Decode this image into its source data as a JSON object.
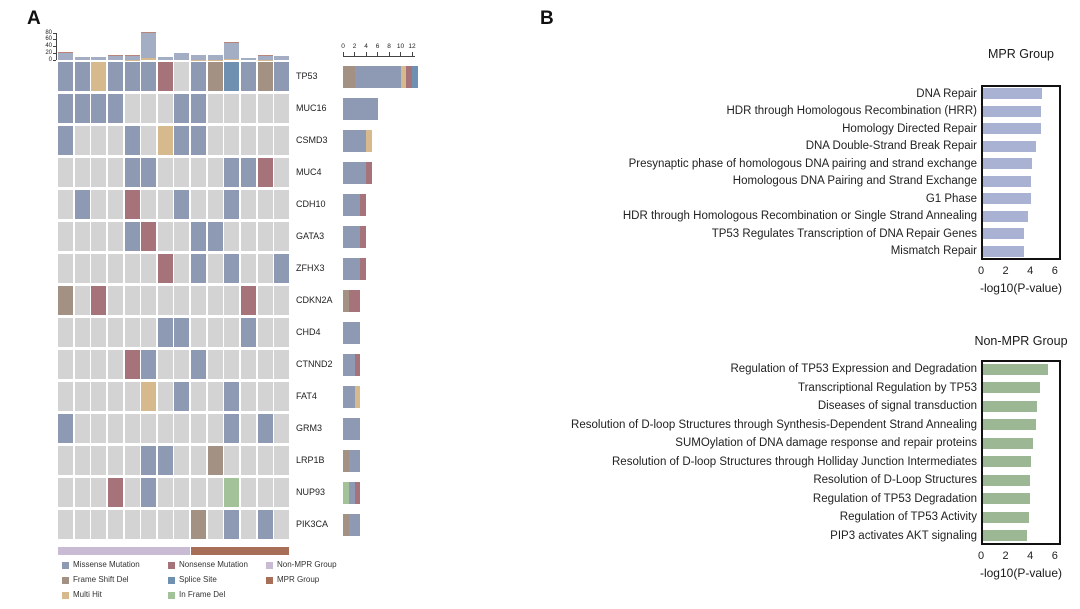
{
  "panelA": {
    "label": "A"
  },
  "panelB": {
    "label": "B"
  },
  "colors": {
    "missense": "#8e9ab4",
    "nonsense": "#a6737b",
    "frameshift": "#a39284",
    "splice": "#7090b2",
    "multihit": "#d6b98c",
    "inframe": "#a3c29a",
    "none": "#d3d3d3",
    "nonmpr_group": "#c8bbd3",
    "mpr_group": "#a76f58",
    "tmb_bar": "#a3aec4",
    "tmb_tip": "#b88579",
    "mpr_bars": "#a9b2d2",
    "nonmpr_bars": "#9cb793"
  },
  "legend": [
    {
      "label": "Missense Mutation",
      "key": "missense"
    },
    {
      "label": "Frame Shift Del",
      "key": "frameshift"
    },
    {
      "label": "Multi Hit",
      "key": "multihit"
    },
    {
      "label": "Nonsense Mutation",
      "key": "nonsense"
    },
    {
      "label": "Splice Site",
      "key": "splice"
    },
    {
      "label": "In Frame Del",
      "key": "inframe"
    },
    {
      "label": "Non-MPR Group",
      "key": "nonmpr_group"
    },
    {
      "label": "MPR Group",
      "key": "mpr_group"
    }
  ],
  "chart_data": [
    {
      "id": "oncoplot",
      "type": "oncoplot-heatmap",
      "n_samples": 14,
      "genes": [
        "TP53",
        "MUC16",
        "CSMD3",
        "MUC4",
        "CDH10",
        "GATA3",
        "ZFHX3",
        "CDKN2A",
        "CHD4",
        "CTNND2",
        "FAT4",
        "GRM3",
        "LRP1B",
        "NUP93",
        "PIK3CA"
      ],
      "matrix": [
        "mmhmmmn.mfsmfm",
        "mmmm...mm.....",
        "m...m.hmm.....",
        "....mm....mmn.",
        ".m..n..m..m...",
        "....mn..mm....",
        "......n.m.m..m",
        "f.n........n..",
        "......mm...m..",
        "....nm..m.....",
        ".....h.m..m...",
        "m.........m.m.",
        ".....mm..f....",
        "...n.m....i...",
        "........f.m.m."
      ],
      "code_map": {
        "m": "missense",
        "n": "nonsense",
        "f": "frameshift",
        "s": "splice",
        "h": "multihit",
        "i": "inframe",
        ".": "none"
      },
      "tmb_axis": {
        "ticks": [
          0,
          20,
          40,
          60,
          80
        ]
      },
      "tmb_bars": [
        [
          0,
          22,
          1
        ],
        [
          0,
          10,
          0
        ],
        [
          0,
          9,
          0
        ],
        [
          0,
          14,
          1
        ],
        [
          1,
          12,
          2
        ],
        [
          5,
          76,
          4
        ],
        [
          0,
          8,
          0
        ],
        [
          0,
          22,
          0
        ],
        [
          1,
          14,
          0
        ],
        [
          1,
          14,
          0
        ],
        [
          3,
          48,
          4
        ],
        [
          0,
          7,
          0
        ],
        [
          1,
          13,
          1
        ],
        [
          0,
          12,
          0
        ]
      ],
      "gene_axis": {
        "ticks": [
          0,
          2,
          4,
          6,
          8,
          10,
          12
        ],
        "max": 12.5
      },
      "gene_bars": [
        [
          [
            "frameshift",
            2
          ],
          [
            "missense",
            8
          ],
          [
            "multihit",
            1
          ],
          [
            "nonsense",
            1
          ],
          [
            "splice",
            1
          ]
        ],
        [
          [
            "missense",
            6
          ]
        ],
        [
          [
            "missense",
            4
          ],
          [
            "multihit",
            1
          ]
        ],
        [
          [
            "missense",
            4
          ],
          [
            "nonsense",
            1
          ]
        ],
        [
          [
            "missense",
            3
          ],
          [
            "nonsense",
            1
          ]
        ],
        [
          [
            "missense",
            3
          ],
          [
            "nonsense",
            1
          ]
        ],
        [
          [
            "missense",
            3
          ],
          [
            "nonsense",
            1
          ]
        ],
        [
          [
            "frameshift",
            1
          ],
          [
            "nonsense",
            2
          ]
        ],
        [
          [
            "missense",
            3
          ]
        ],
        [
          [
            "missense",
            2
          ],
          [
            "nonsense",
            1
          ]
        ],
        [
          [
            "missense",
            2
          ],
          [
            "multihit",
            1
          ]
        ],
        [
          [
            "missense",
            3
          ]
        ],
        [
          [
            "frameshift",
            1
          ],
          [
            "missense",
            2
          ]
        ],
        [
          [
            "inframe",
            1
          ],
          [
            "missense",
            1
          ],
          [
            "nonsense",
            1
          ]
        ],
        [
          [
            "frameshift",
            1
          ],
          [
            "missense",
            2
          ]
        ]
      ],
      "group_annotation": {
        "nonmpr_samples": 8,
        "mpr_samples": 6
      }
    },
    {
      "id": "mpr",
      "type": "bar",
      "orientation": "horizontal",
      "title": "MPR Group",
      "categories": [
        "DNA Repair",
        "HDR through Homologous Recombination (HRR)",
        "Homology Directed Repair",
        "DNA Double-Strand Break Repair",
        "Presynaptic phase of homologous DNA pairing and strand exchange",
        "Homologous DNA Pairing and Strand Exchange",
        "G1 Phase",
        "HDR through Homologous Recombination or Single Strand Annealing",
        "TP53 Regulates Transcription of DNA Repair Genes",
        "Mismatch Repair"
      ],
      "values": [
        4.8,
        4.7,
        4.75,
        4.3,
        4.0,
        3.9,
        3.9,
        3.65,
        3.35,
        3.3
      ],
      "xlabel": "-log10(P-value)",
      "xticks": [
        0,
        2,
        4,
        6
      ],
      "xlim": [
        0,
        6.5
      ],
      "legend_position": "none",
      "grid": false
    },
    {
      "id": "nonmpr",
      "type": "bar",
      "orientation": "horizontal",
      "title": "Non-MPR Group",
      "categories": [
        "Regulation of TP53 Expression and Degradation",
        "Transcriptional Regulation by TP53",
        "Diseases of signal transduction",
        "Resolution of D-loop Structures through Synthesis-Dependent Strand Annealing",
        "SUMOylation of DNA damage response and repair proteins",
        "Resolution of D-loop Structures through Holliday Junction Intermediates",
        "Resolution of D-Loop Structures",
        "Regulation of TP53 Degradation",
        "Regulation of TP53 Activity",
        "PIP3 activates AKT signaling"
      ],
      "values": [
        5.3,
        4.6,
        4.4,
        4.3,
        4.1,
        3.9,
        3.85,
        3.8,
        3.75,
        3.6
      ],
      "xlabel": "-log10(P-value)",
      "xticks": [
        0,
        2,
        4,
        6
      ],
      "xlim": [
        0,
        6.5
      ],
      "legend_position": "none",
      "grid": false
    }
  ]
}
